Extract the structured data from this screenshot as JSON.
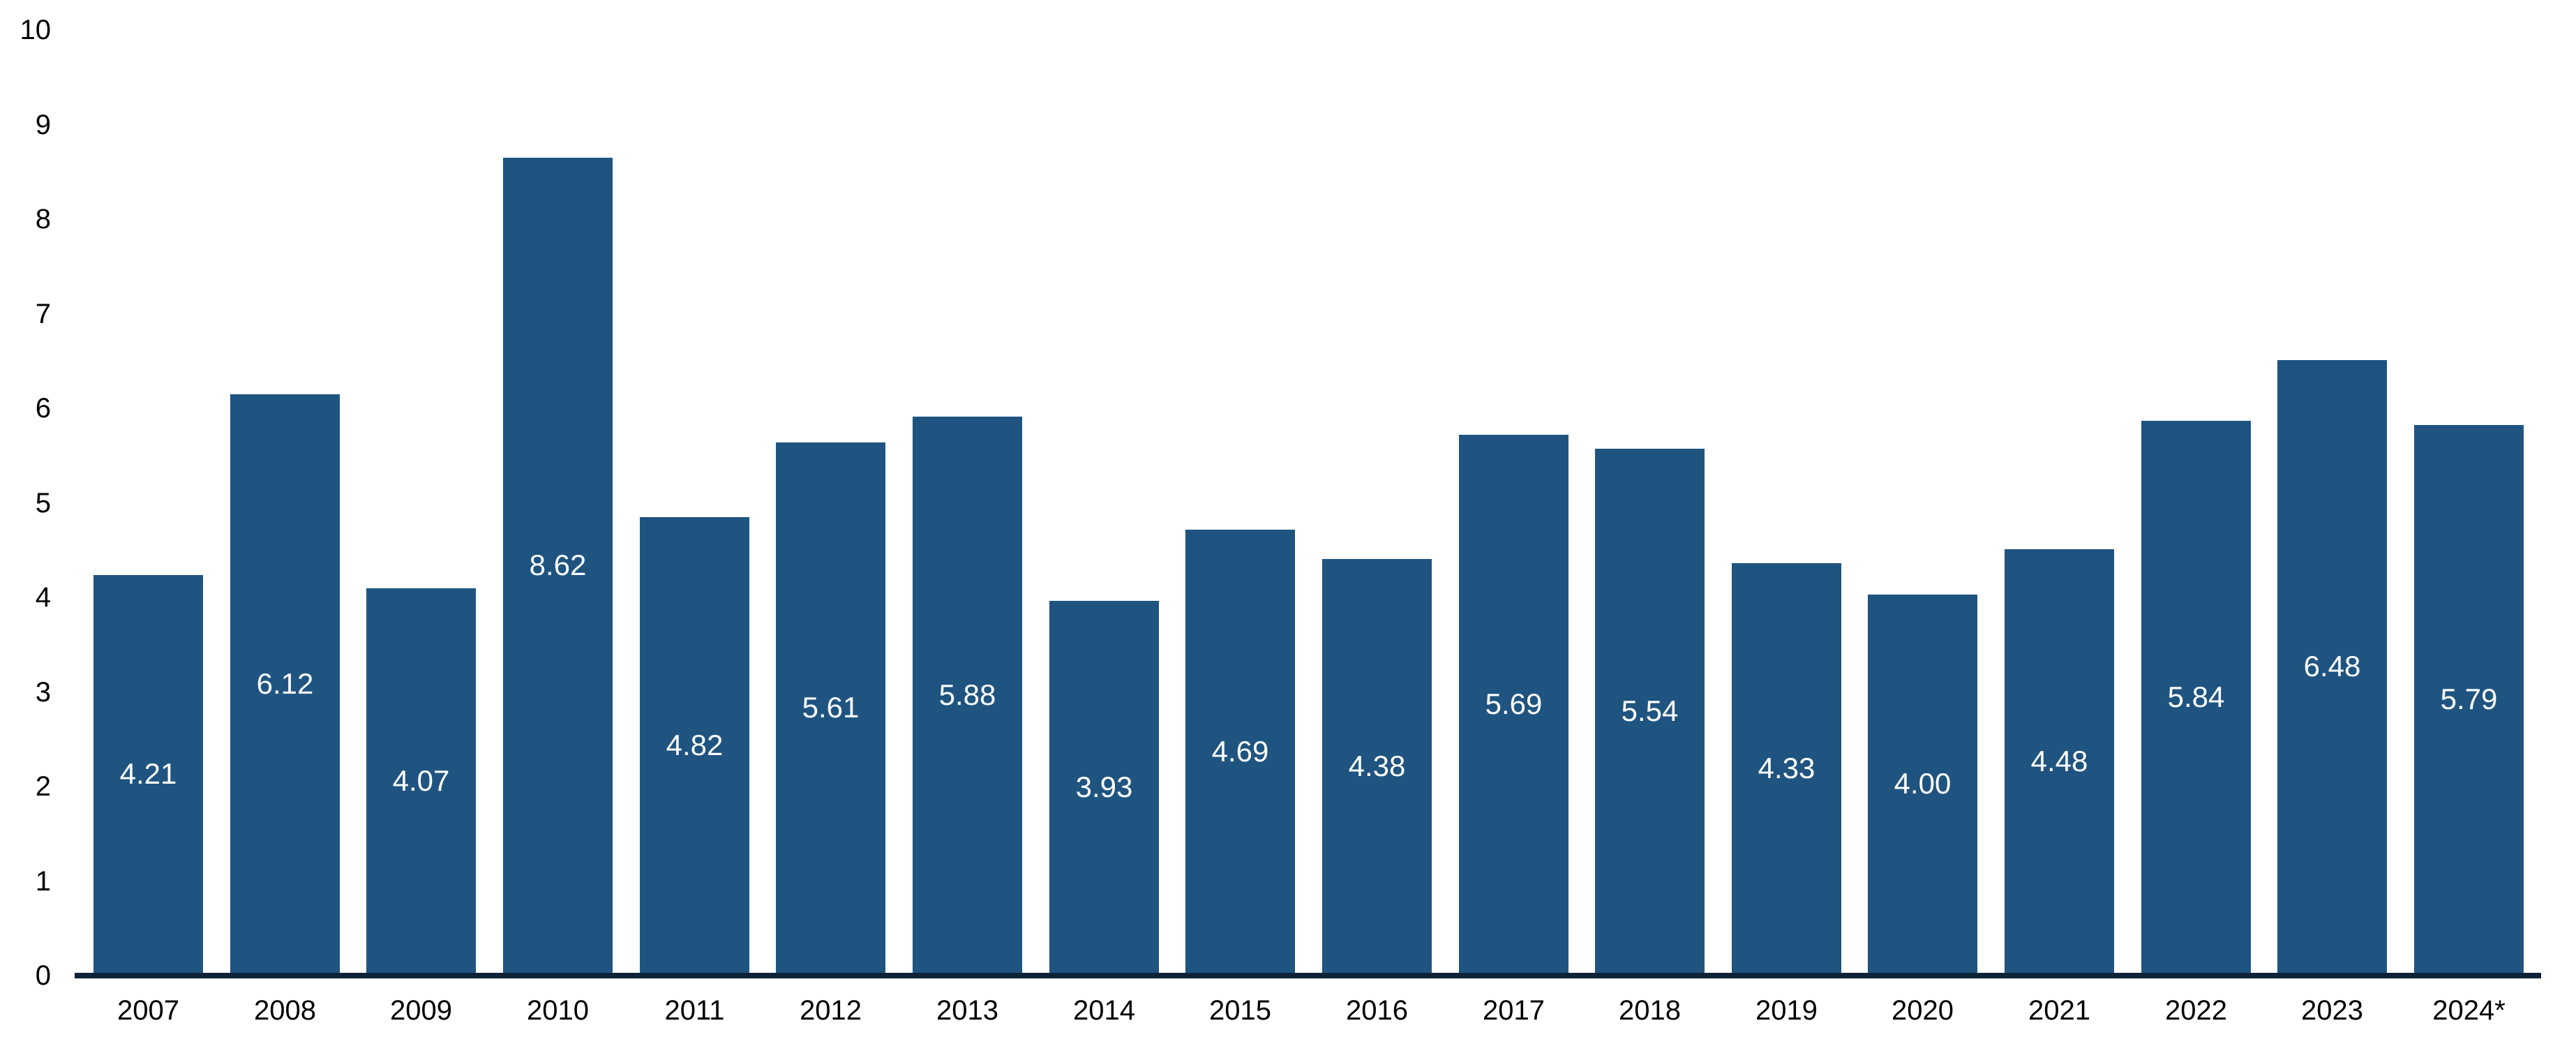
{
  "chart_data": {
    "type": "bar",
    "title": "",
    "xlabel": "",
    "ylabel": "",
    "categories": [
      "2007",
      "2008",
      "2009",
      "2010",
      "2011",
      "2012",
      "2013",
      "2014",
      "2015",
      "2016",
      "2017",
      "2018",
      "2019",
      "2020",
      "2021",
      "2022",
      "2023",
      "2024*"
    ],
    "values": [
      4.21,
      6.12,
      4.07,
      8.62,
      4.82,
      5.61,
      5.88,
      3.93,
      4.69,
      4.38,
      5.69,
      5.54,
      4.33,
      4.0,
      4.48,
      5.84,
      6.48,
      5.79
    ],
    "value_labels": [
      "4.21",
      "6.12",
      "4.07",
      "8.62",
      "4.82",
      "5.61",
      "5.88",
      "3.93",
      "4.69",
      "4.38",
      "5.69",
      "5.54",
      "4.33",
      "4.00",
      "4.48",
      "5.84",
      "6.48",
      "5.79"
    ],
    "ylim": [
      0,
      10
    ],
    "yticks": [
      "0",
      "1",
      "2",
      "3",
      "4",
      "5",
      "6",
      "7",
      "8",
      "9",
      "10"
    ],
    "grid": false,
    "legend": false,
    "value_label_position": "centered-inside-bar",
    "colors": {
      "bar_fill": "#1F5480",
      "axis_line": "#0E2238",
      "value_label": "#FFFFFF",
      "tick_label": "#000000",
      "background": "#FFFFFF"
    }
  }
}
